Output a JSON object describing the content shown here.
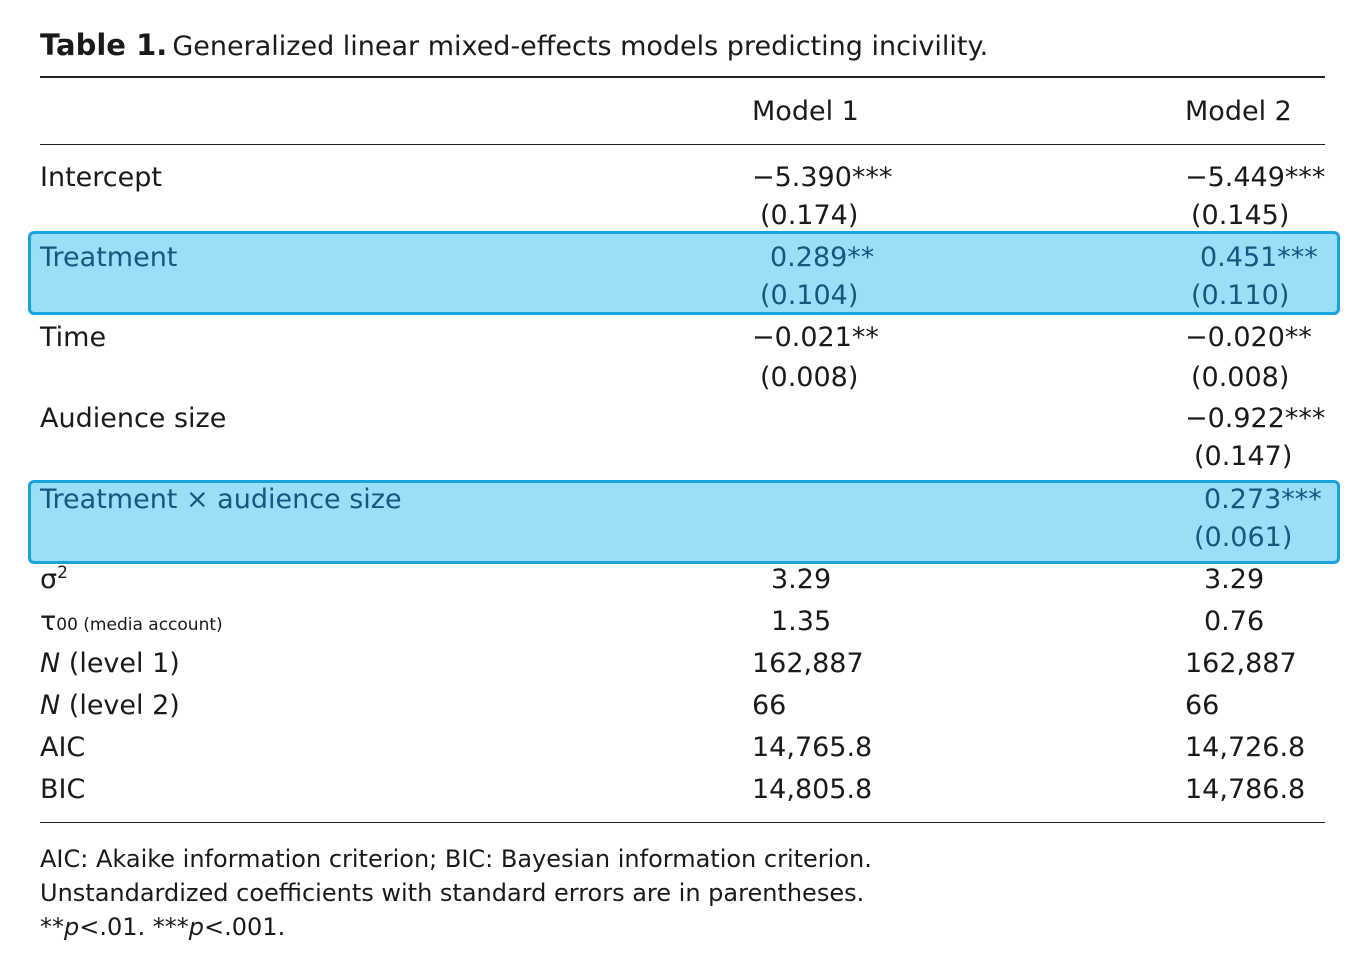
{
  "title": {
    "label": "Table 1.",
    "caption": "Generalized linear mixed-effects models predicting incivility."
  },
  "columns": [
    "Model 1",
    "Model 2"
  ],
  "rows": {
    "intercept": {
      "label": "Intercept",
      "m1": "−5.390***",
      "m1_se": "(0.174)",
      "m2": "−5.449***",
      "m2_se": "(0.145)"
    },
    "treatment": {
      "label": "Treatment",
      "m1": "0.289**",
      "m1_se": "(0.104)",
      "m2": "0.451***",
      "m2_se": "(0.110)"
    },
    "time": {
      "label": "Time",
      "m1": "−0.021**",
      "m1_se": "(0.008)",
      "m2": "−0.020**",
      "m2_se": "(0.008)"
    },
    "audience": {
      "label": "Audience size",
      "m2": "−0.922***",
      "m2_se": "(0.147)"
    },
    "interaction": {
      "label": "Treatment × audience size",
      "m2": "0.273***",
      "m2_se": "(0.061)"
    },
    "sigma2": {
      "symbol": "σ",
      "sup": "2",
      "m1": "3.29",
      "m2": "3.29"
    },
    "tau00": {
      "symbol": "τ",
      "sub": "00 (media account)",
      "m1": "1.35",
      "m2": "0.76"
    },
    "n1": {
      "n": "N",
      "label": " (level 1)",
      "m1": "162,887",
      "m2": "162,887"
    },
    "n2": {
      "n": "N",
      "label": " (level 2)",
      "m1": "66",
      "m2": "66"
    },
    "aic": {
      "label": "AIC",
      "m1": "14,765.8",
      "m2": "14,726.8"
    },
    "bic": {
      "label": "BIC",
      "m1": "14,805.8",
      "m2": "14,786.8"
    }
  },
  "notes": {
    "line1": "AIC: Akaike information criterion; BIC: Bayesian information criterion.",
    "line2": "Unstandardized coefficients with standard errors are in parentheses.",
    "line3_a": "**",
    "line3_p1": "p",
    "line3_b": "<.01. ***",
    "line3_p2": "p",
    "line3_c": "<.001."
  },
  "colors": {
    "highlight_fill": "#99dff7",
    "highlight_border": "#1aa2df",
    "highlight_text": "#14577f"
  }
}
